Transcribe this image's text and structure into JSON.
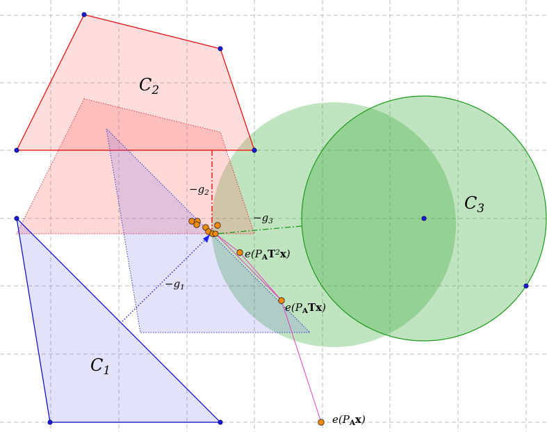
{
  "labels": {
    "c2": [
      {
        "t": "C"
      },
      {
        "t": "2",
        "s": "sub"
      }
    ],
    "c1": [
      {
        "t": "C"
      },
      {
        "t": "1",
        "s": "sub"
      }
    ],
    "c3": [
      {
        "t": "C"
      },
      {
        "t": "3",
        "s": "sub"
      }
    ],
    "g2": [
      {
        "t": "−g"
      },
      {
        "t": "2",
        "s": "sub"
      }
    ],
    "g1": [
      {
        "t": "−g"
      },
      {
        "t": "1",
        "s": "sub"
      }
    ],
    "g3": [
      {
        "t": "−g"
      },
      {
        "t": "3",
        "s": "sub"
      }
    ],
    "e2": [
      {
        "t": "e(P"
      },
      {
        "t": "A",
        "s": "subb"
      },
      {
        "t": "T",
        "s": "bold"
      },
      {
        "t": "2",
        "s": "sup"
      },
      {
        "t": "x",
        "s": "bold"
      },
      {
        "t": ")"
      }
    ],
    "e1": [
      {
        "t": "e(P"
      },
      {
        "t": "A",
        "s": "subb"
      },
      {
        "t": "Tx",
        "s": "bold"
      },
      {
        "t": ")"
      }
    ],
    "e0": [
      {
        "t": "e(P"
      },
      {
        "t": "A",
        "s": "subb"
      },
      {
        "t": "x",
        "s": "bold"
      },
      {
        "t": ")"
      }
    ]
  }
}
